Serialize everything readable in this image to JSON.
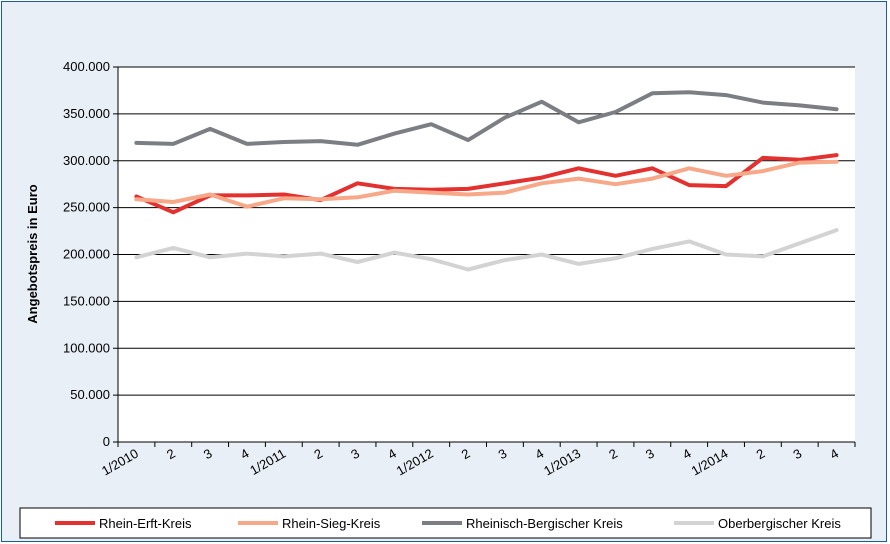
{
  "chart_data": {
    "type": "line",
    "title": "",
    "xlabel": "",
    "ylabel": "Angebotspreis in Euro",
    "ylim": [
      0,
      400000
    ],
    "yticks": [
      "0",
      "50.000",
      "100.000",
      "150.000",
      "200.000",
      "250.000",
      "300.000",
      "350.000",
      "400.000"
    ],
    "grid": true,
    "legend_position": "bottom",
    "categories": [
      "1/2010",
      "2",
      "3",
      "4",
      "1/2011",
      "2",
      "3",
      "4",
      "1/2012",
      "2",
      "3",
      "4",
      "1/2013",
      "2",
      "3",
      "4",
      "1/2014",
      "2",
      "3",
      "4"
    ],
    "series": [
      {
        "name": "Rhein-Erft-Kreis",
        "color": "#e3312f",
        "values": [
          262000,
          245000,
          263000,
          263000,
          264000,
          258000,
          276000,
          270000,
          269000,
          270000,
          276000,
          282000,
          292000,
          284000,
          292000,
          274000,
          273000,
          303000,
          301000,
          306000
        ]
      },
      {
        "name": "Rhein-Sieg-Kreis",
        "color": "#f6a889",
        "values": [
          259000,
          256000,
          264000,
          251000,
          260000,
          259000,
          261000,
          268000,
          266000,
          264000,
          266000,
          276000,
          281000,
          275000,
          281000,
          292000,
          284000,
          289000,
          298000,
          299000
        ]
      },
      {
        "name": "Rheinisch-Bergischer Kreis",
        "color": "#7d7e84",
        "values": [
          319000,
          318000,
          334000,
          318000,
          320000,
          321000,
          317000,
          329000,
          339000,
          322000,
          346000,
          363000,
          341000,
          352000,
          372000,
          373000,
          370000,
          362000,
          359000,
          355000
        ]
      },
      {
        "name": "Oberbergischer Kreis",
        "color": "#d3d3d3",
        "values": [
          197000,
          207000,
          197000,
          201000,
          198000,
          201000,
          192000,
          202000,
          195000,
          184000,
          194000,
          200000,
          190000,
          196000,
          206000,
          214000,
          200000,
          198000,
          212000,
          226000
        ]
      }
    ]
  }
}
